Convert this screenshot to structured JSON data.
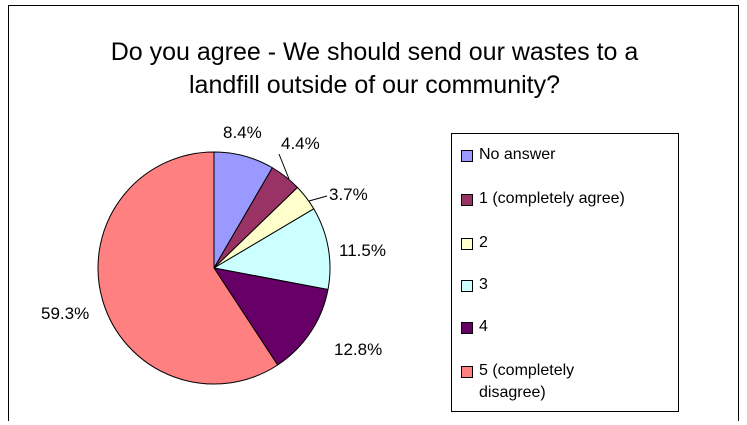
{
  "chart_data": {
    "type": "pie",
    "title_lines": [
      "Do you agree - We should send our wastes to a",
      "landfill outside of our community?"
    ],
    "slices": [
      {
        "label": "No answer",
        "value": 8.4,
        "display": "8.4%",
        "color": "#9999ff"
      },
      {
        "label": "1 (completely agree)",
        "value": 4.4,
        "display": "4.4%",
        "color": "#993366"
      },
      {
        "label": "2",
        "value": 3.7,
        "display": "3.7%",
        "color": "#ffffcc"
      },
      {
        "label": "3",
        "value": 11.5,
        "display": "11.5%",
        "color": "#ccffff"
      },
      {
        "label": "4",
        "value": 12.8,
        "display": "12.8%",
        "color": "#660066"
      },
      {
        "label": "5 (completely\ndisagree)",
        "value": 59.3,
        "display": "59.3%",
        "color": "#ff8080"
      }
    ],
    "legend_placement": "right"
  }
}
